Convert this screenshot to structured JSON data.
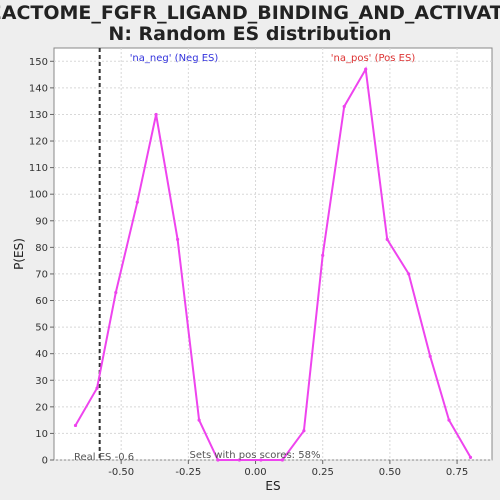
{
  "chart_data": {
    "type": "line",
    "title_line1": "REACTOME_FGFR_LIGAND_BINDING_AND_ACTIVATIO",
    "title_line2": "N: Random ES distribution",
    "xlabel": "ES",
    "ylabel": "P(ES)",
    "xlim": [
      -0.75,
      0.88
    ],
    "ylim": [
      0,
      155
    ],
    "xticks": [
      -0.5,
      -0.25,
      0.0,
      0.25,
      0.5,
      0.75
    ],
    "xtick_labels": [
      "-0.50",
      "-0.25",
      "0.00",
      "0.25",
      "0.50",
      "0.75"
    ],
    "yticks": [
      0,
      10,
      20,
      30,
      40,
      50,
      60,
      70,
      80,
      90,
      100,
      110,
      120,
      130,
      140,
      150
    ],
    "grid": true,
    "series": [
      {
        "color": "#ee44ee",
        "x": [
          -0.67,
          -0.59,
          -0.52,
          -0.44,
          -0.37,
          -0.29,
          -0.21,
          -0.14,
          -0.06,
          0.02,
          0.1,
          0.18,
          0.25,
          0.33,
          0.41,
          0.49,
          0.57,
          0.65,
          0.72,
          0.8
        ],
        "y": [
          13,
          27,
          63,
          97,
          130,
          83,
          15,
          0,
          0,
          0,
          0,
          11,
          77,
          133,
          147,
          83,
          70,
          39,
          15,
          1
        ]
      }
    ],
    "real_es": -0.58,
    "annotations": {
      "neg": "'na_neg' (Neg ES)",
      "pos": "'na_pos' (Pos ES)",
      "real_es": "Real ES -0.6",
      "pos_scores": "Sets with pos scores: 58%"
    },
    "colors": {
      "line": "#ee44ee",
      "real_es_line": "#333333",
      "neg_label": "#3333dd",
      "pos_label": "#dd3333"
    }
  }
}
